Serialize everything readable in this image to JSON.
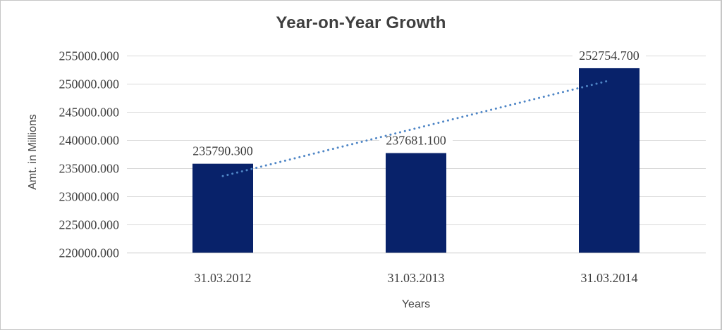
{
  "chart_data": {
    "type": "bar",
    "title": "Year-on-Year Growth",
    "xlabel": "Years",
    "ylabel": "Amt. in Millions",
    "categories": [
      "31.03.2012",
      "31.03.2013",
      "31.03.2014"
    ],
    "values": [
      235790.3,
      237681.1,
      252754.7
    ],
    "data_labels": [
      "235790.300",
      "237681.100",
      "252754.700"
    ],
    "ylim": [
      220000,
      255000
    ],
    "ytick_step": 5000,
    "ytick_labels": [
      "220000.000",
      "225000.000",
      "230000.000",
      "235000.000",
      "240000.000",
      "245000.000",
      "250000.000",
      "255000.000"
    ],
    "grid": true,
    "legend": false,
    "trendline": {
      "fit": "linear",
      "style": "dotted"
    },
    "colors": {
      "bar": "#08226a",
      "trendline": "#4f86c6",
      "gridline": "#d9d9d9",
      "axis_line": "#c8c8c8",
      "text": "#3f3f3f",
      "title": "#3f3f3f",
      "background": "#ffffff",
      "frame_border": "#c6c6c6"
    }
  }
}
